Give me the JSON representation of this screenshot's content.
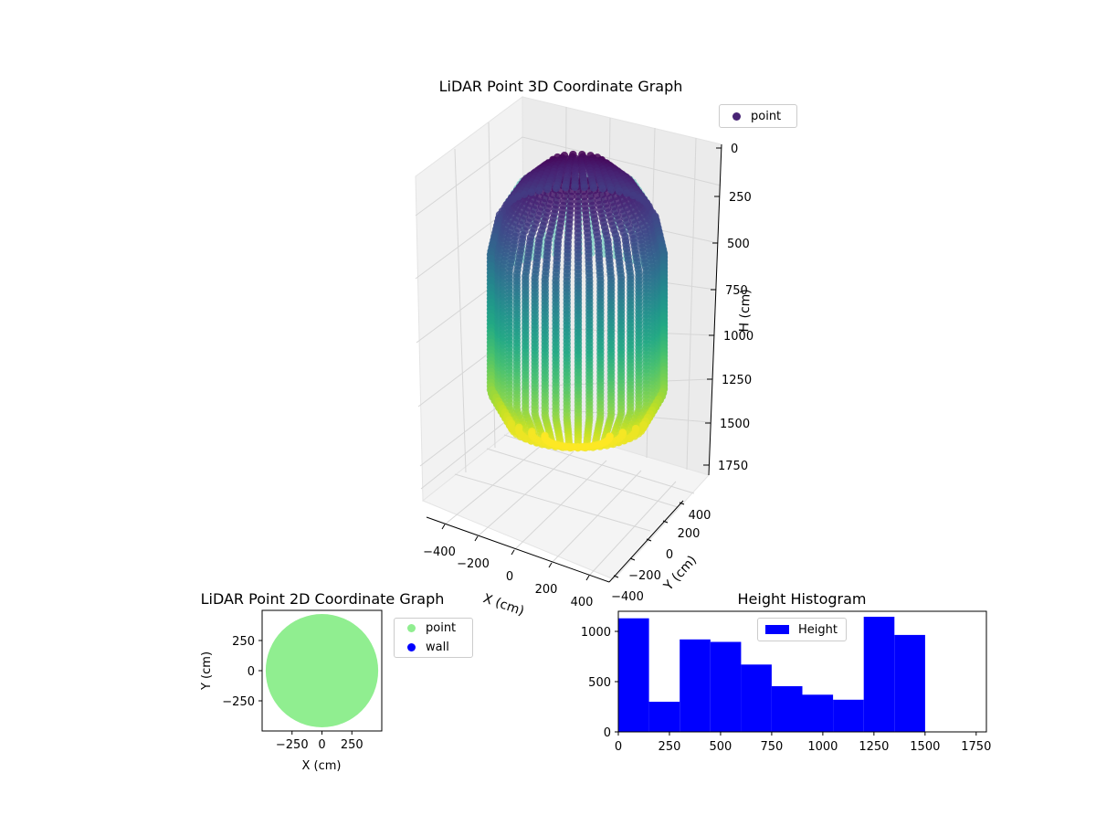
{
  "chart_data": [
    {
      "type": "scatter",
      "projection": "3d",
      "title": "LiDAR Point 3D Coordinate Graph",
      "xlabel": "X (cm)",
      "ylabel": "Y (cm)",
      "zlabel": "H (cm)",
      "xlim": [
        -450,
        450
      ],
      "ylim": [
        -450,
        450
      ],
      "zlim": [
        1800,
        0
      ],
      "x_ticks": [
        "−400",
        "−200",
        "0",
        "200",
        "400"
      ],
      "y_ticks": [
        "−400",
        "−200",
        "0",
        "200",
        "400"
      ],
      "z_ticks": [
        "0",
        "250",
        "500",
        "750",
        "1000",
        "1250",
        "1500",
        "1750"
      ],
      "colormap": "viridis",
      "legend": {
        "placement": "top-right",
        "entries": [
          {
            "label": "point",
            "color": "#482475"
          }
        ]
      },
      "shape": {
        "profile": [
          {
            "h": 0,
            "radius": 120
          },
          {
            "h": 120,
            "radius": 250
          },
          {
            "h": 300,
            "radius": 360
          },
          {
            "h": 500,
            "radius": 400
          },
          {
            "h": 1250,
            "radius": 400
          },
          {
            "h": 1450,
            "radius": 300
          },
          {
            "h": 1500,
            "radius": 150
          }
        ]
      },
      "grid": true
    },
    {
      "type": "scatter",
      "title": "LiDAR Point 2D Coordinate Graph",
      "xlabel": "X (cm)",
      "ylabel": "Y (cm)",
      "xlim": [
        -500,
        500
      ],
      "ylim": [
        -500,
        500
      ],
      "x_ticks": [
        "−250",
        "0",
        "250"
      ],
      "y_ticks": [
        "−250",
        "0",
        "250"
      ],
      "legend": {
        "placement": "outside-right",
        "entries": [
          {
            "label": "point",
            "color": "#90ee90"
          },
          {
            "label": "wall",
            "color": "#0000ff"
          }
        ]
      },
      "shape": {
        "center": [
          0,
          0
        ],
        "radius": 470
      }
    },
    {
      "type": "bar",
      "title": "Height Histogram",
      "xlim": [
        0,
        1800
      ],
      "ylim": [
        0,
        1200
      ],
      "x_ticks": [
        "0",
        "250",
        "500",
        "750",
        "1000",
        "1250",
        "1500",
        "1750"
      ],
      "y_ticks": [
        "0",
        "500",
        "1000"
      ],
      "bins": [
        {
          "start": 0,
          "end": 150,
          "count": 1130
        },
        {
          "start": 150,
          "end": 300,
          "count": 300
        },
        {
          "start": 300,
          "end": 450,
          "count": 920
        },
        {
          "start": 450,
          "end": 600,
          "count": 895
        },
        {
          "start": 600,
          "end": 750,
          "count": 670
        },
        {
          "start": 750,
          "end": 900,
          "count": 455
        },
        {
          "start": 900,
          "end": 1050,
          "count": 370
        },
        {
          "start": 1050,
          "end": 1200,
          "count": 320
        },
        {
          "start": 1200,
          "end": 1350,
          "count": 1145
        },
        {
          "start": 1350,
          "end": 1500,
          "count": 965
        }
      ],
      "color": "#0000ff",
      "legend": {
        "placement": "top-center",
        "entries": [
          {
            "label": "Height",
            "color": "#0000ff"
          }
        ]
      }
    }
  ]
}
